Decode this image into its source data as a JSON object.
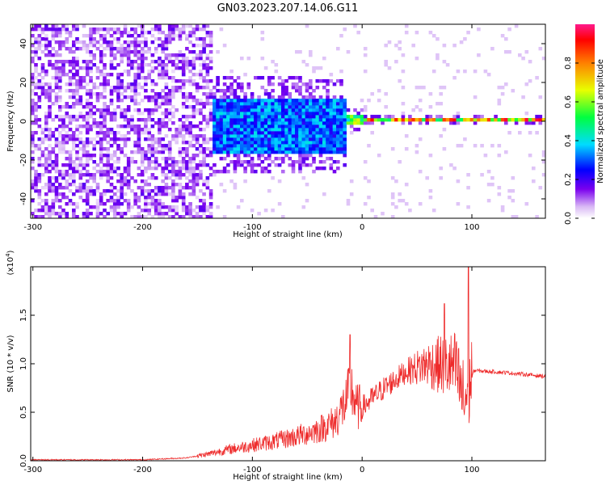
{
  "title": "GN03.2023.207.14.06.G11",
  "colors": {
    "snr_line": "#ee2a2a",
    "colormap_stops": [
      "#ffffff",
      "#c89df0",
      "#7a00ee",
      "#0000ff",
      "#00dcff",
      "#00ff40",
      "#e8ff00",
      "#ff8000",
      "#ff0000",
      "#ff1a8c"
    ]
  },
  "chart_data": [
    {
      "type": "heatmap",
      "xlabel": "Height of straight line (km)",
      "ylabel": "Frequency (Hz)",
      "xlim": [
        -302,
        167
      ],
      "ylim": [
        -50,
        50
      ],
      "xticks": [
        -300,
        -200,
        -100,
        0,
        100
      ],
      "yticks": [
        -40,
        -20,
        0,
        20,
        40
      ],
      "grid": false,
      "colorbar": {
        "label": "Normalized spectral amplitude",
        "range": [
          0,
          1
        ],
        "ticks": [
          "0.0",
          "0.2",
          "0.4",
          "0.6",
          "0.8"
        ],
        "colormap": "rainbow"
      },
      "regions": [
        {
          "x_from": -302,
          "x_to": -138,
          "description_value": "diffuse noise across all frequencies",
          "amplitude": 0.15
        },
        {
          "x_from": -140,
          "x_to": -15,
          "freq_center": -3,
          "freq_halfwidth": 14,
          "amplitude": 0.35
        },
        {
          "x_from": -15,
          "x_to": 0,
          "freq_center": 0,
          "freq_halfwidth": 3,
          "amplitude": 0.6
        },
        {
          "x_from": 0,
          "x_to": 100,
          "freq_center": 0,
          "freq_halfwidth": 1.5,
          "amplitude": 0.8
        },
        {
          "x_from": 100,
          "x_to": 167,
          "freq_center": 0,
          "freq_halfwidth": 1.5,
          "amplitude": 0.85
        }
      ]
    },
    {
      "type": "line",
      "xlabel": "Height of straight line (km)",
      "ylabel": "SNR (10 * v/v)",
      "y_multiplier": "(x10^4)",
      "xlim": [
        -302,
        167
      ],
      "ylim": [
        0,
        2.0
      ],
      "xticks": [
        -300,
        -200,
        -100,
        0,
        100
      ],
      "yticks": [
        0.0,
        0.5,
        1.0,
        1.5
      ],
      "grid": false,
      "series": [
        {
          "x": [
            -302,
            -250,
            -200,
            -160,
            -140,
            -120,
            -100,
            -80,
            -60,
            -40,
            -25,
            -15,
            -10,
            -5,
            0,
            20,
            40,
            60,
            75,
            85,
            93,
            98,
            102,
            130,
            167
          ],
          "y": [
            0.01,
            0.01,
            0.01,
            0.03,
            0.07,
            0.12,
            0.16,
            0.2,
            0.25,
            0.32,
            0.4,
            0.6,
            0.75,
            0.55,
            0.55,
            0.75,
            0.92,
            1.0,
            0.98,
            0.95,
            0.6,
            0.8,
            0.93,
            0.91,
            0.87
          ]
        }
      ],
      "peaks": [
        {
          "x": -11,
          "y": 1.3
        },
        {
          "x": 75,
          "y": 1.62
        },
        {
          "x": 97,
          "y": 2.0
        }
      ]
    }
  ]
}
